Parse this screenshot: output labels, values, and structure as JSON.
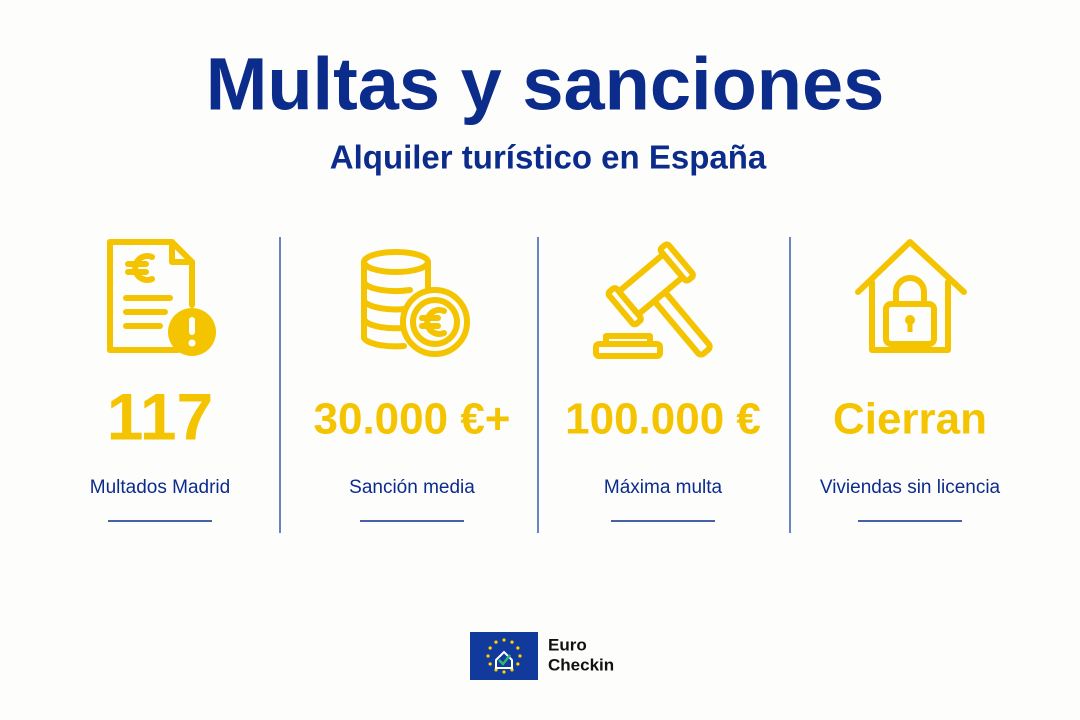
{
  "header": {
    "title": "Multas y sanciones",
    "subtitle": "Alquiler turístico en España"
  },
  "stats": [
    {
      "value": "117",
      "label": "Multados Madrid"
    },
    {
      "value": "30.000 €+",
      "label": "Sanción media"
    },
    {
      "value": "100.000 €",
      "label": "Máxima multa"
    },
    {
      "value": "Cierran",
      "label": "Viviendas sin licencia"
    }
  ],
  "logo": {
    "line1": "Euro",
    "line2": "Checkin"
  }
}
